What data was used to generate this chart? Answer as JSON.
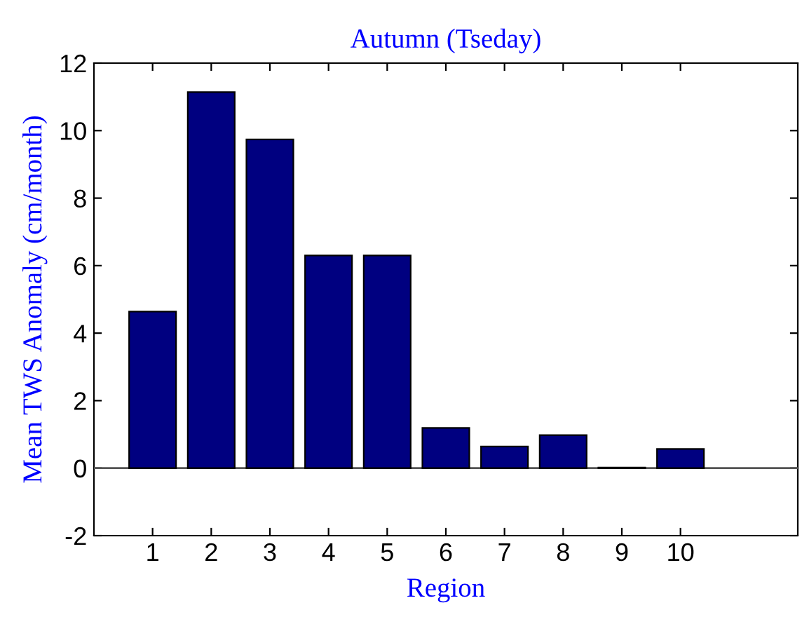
{
  "chart_data": {
    "type": "bar",
    "title": "Autumn (Tseday)",
    "xlabel": "Region",
    "ylabel": "Mean TWS Anomaly (cm/month)",
    "x": [
      1,
      2,
      3,
      4,
      5,
      6,
      7,
      8,
      9,
      10
    ],
    "values": [
      4.64,
      11.14,
      9.74,
      6.3,
      6.3,
      1.19,
      0.64,
      0.98,
      0.02,
      0.57
    ],
    "color": "#000080",
    "xlim": [
      0,
      12
    ],
    "xticks": [
      1,
      2,
      3,
      4,
      5,
      6,
      7,
      8,
      9,
      10
    ],
    "ylim": [
      -2,
      12
    ],
    "yticks": [
      -2,
      0,
      2,
      4,
      6,
      8,
      10,
      12
    ],
    "ref_lines": [
      {
        "axis": "y",
        "value": 0,
        "color": "#555555"
      }
    ],
    "legend": false
  }
}
